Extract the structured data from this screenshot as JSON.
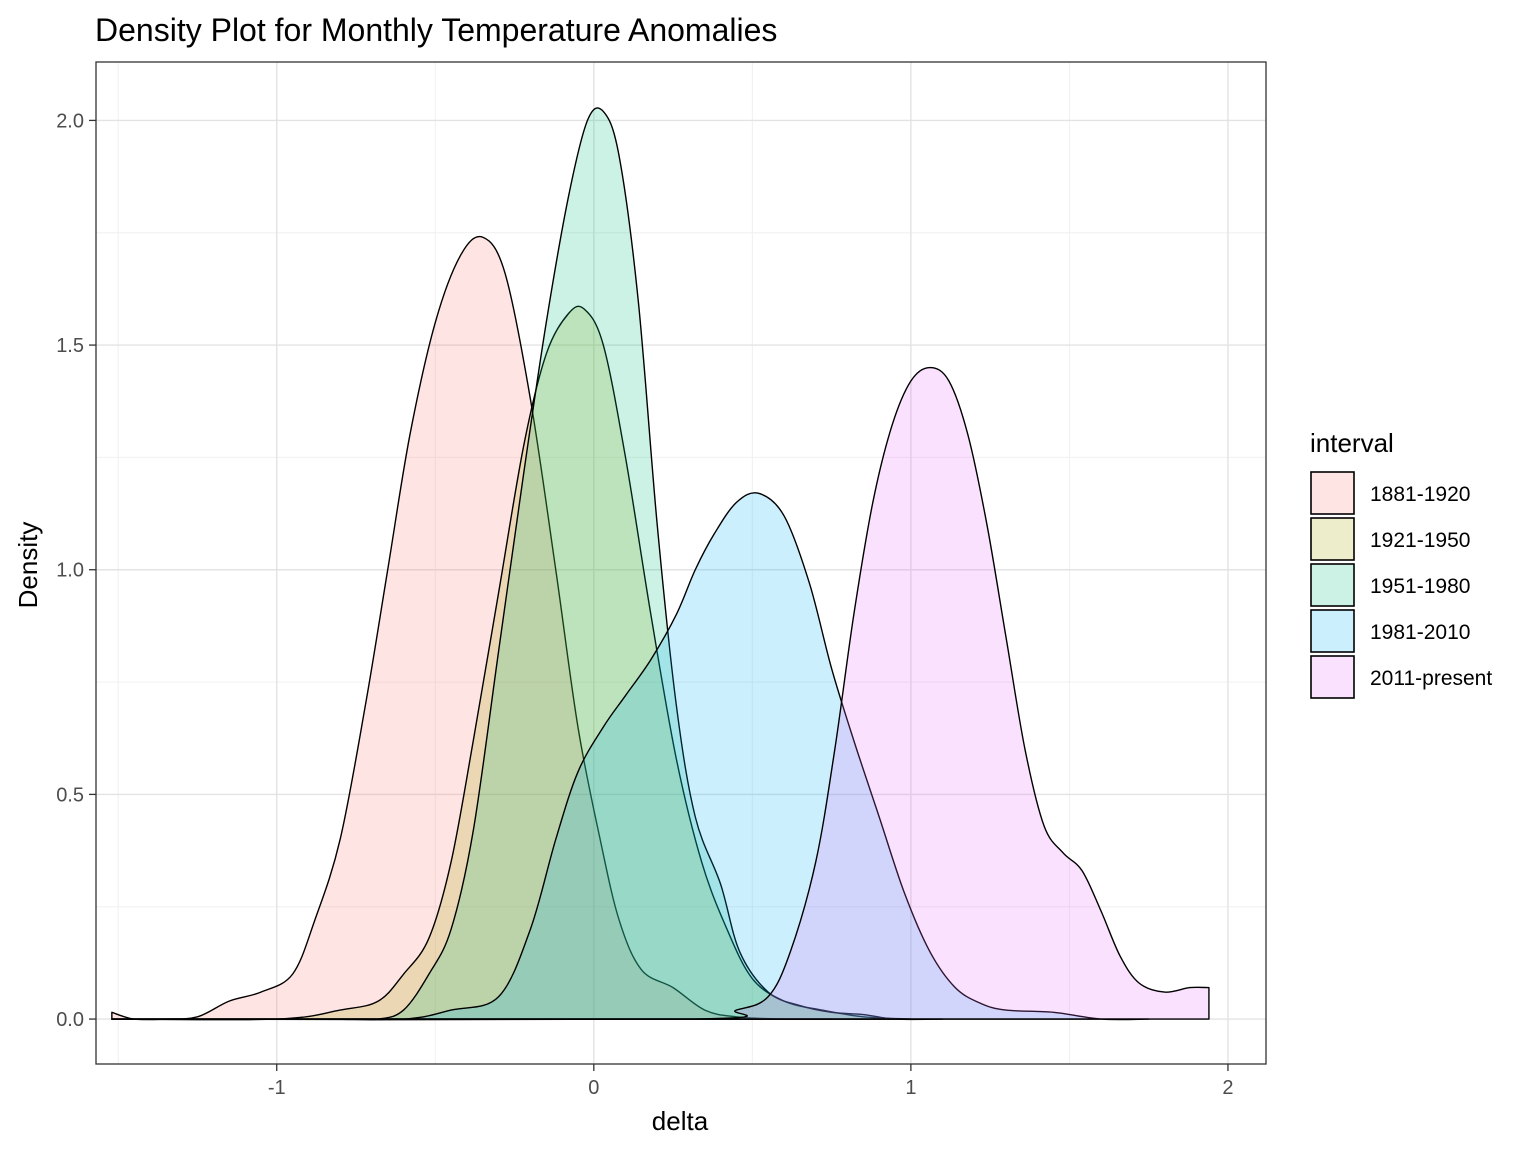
{
  "chart_data": {
    "type": "area",
    "title": "Density Plot for Monthly Temperature Anomalies",
    "xlabel": "delta",
    "ylabel": "Density",
    "xlim": [
      -1.57,
      2.12
    ],
    "ylim": [
      -0.1,
      2.13
    ],
    "xticks": [
      -1,
      0,
      1,
      2
    ],
    "xtick_labels": [
      "-1",
      "0",
      "1",
      "2"
    ],
    "yticks": [
      0,
      0.5,
      1,
      1.5,
      2
    ],
    "ytick_labels": [
      "0.0",
      "0.5",
      "1.0",
      "1.5",
      "2.0"
    ],
    "grid": true,
    "legend": {
      "title": "interval",
      "position": "right"
    },
    "series": [
      {
        "name": "1881-1920",
        "color": "#F8766D",
        "points": [
          [
            -1.52,
            0.015
          ],
          [
            -1.45,
            0.0
          ],
          [
            -1.35,
            0.0
          ],
          [
            -1.25,
            0.005
          ],
          [
            -1.15,
            0.04
          ],
          [
            -1.05,
            0.06
          ],
          [
            -0.95,
            0.1
          ],
          [
            -0.88,
            0.22
          ],
          [
            -0.8,
            0.4
          ],
          [
            -0.72,
            0.7
          ],
          [
            -0.65,
            1.0
          ],
          [
            -0.58,
            1.3
          ],
          [
            -0.5,
            1.55
          ],
          [
            -0.42,
            1.7
          ],
          [
            -0.35,
            1.74
          ],
          [
            -0.28,
            1.66
          ],
          [
            -0.2,
            1.38
          ],
          [
            -0.12,
            1.0
          ],
          [
            -0.05,
            0.65
          ],
          [
            0.02,
            0.4
          ],
          [
            0.08,
            0.22
          ],
          [
            0.15,
            0.11
          ],
          [
            0.25,
            0.07
          ],
          [
            0.35,
            0.02
          ],
          [
            0.45,
            0.005
          ],
          [
            0.6,
            0.0
          ],
          [
            0.75,
            0.0
          ]
        ]
      },
      {
        "name": "1921-1950",
        "color": "#A3A500",
        "points": [
          [
            -1.52,
            0.0
          ],
          [
            -1.0,
            0.0
          ],
          [
            -0.8,
            0.02
          ],
          [
            -0.68,
            0.04
          ],
          [
            -0.6,
            0.1
          ],
          [
            -0.52,
            0.18
          ],
          [
            -0.45,
            0.35
          ],
          [
            -0.38,
            0.62
          ],
          [
            -0.3,
            0.95
          ],
          [
            -0.22,
            1.28
          ],
          [
            -0.15,
            1.48
          ],
          [
            -0.08,
            1.57
          ],
          [
            -0.03,
            1.58
          ],
          [
            0.03,
            1.5
          ],
          [
            0.1,
            1.25
          ],
          [
            0.18,
            0.9
          ],
          [
            0.26,
            0.58
          ],
          [
            0.34,
            0.35
          ],
          [
            0.42,
            0.2
          ],
          [
            0.5,
            0.09
          ],
          [
            0.6,
            0.04
          ],
          [
            0.72,
            0.02
          ],
          [
            0.85,
            0.005
          ],
          [
            1.0,
            0.0
          ]
        ]
      },
      {
        "name": "1951-1980",
        "color": "#00BF7D",
        "points": [
          [
            -1.52,
            0.0
          ],
          [
            -0.8,
            0.0
          ],
          [
            -0.68,
            0.0
          ],
          [
            -0.6,
            0.02
          ],
          [
            -0.52,
            0.1
          ],
          [
            -0.45,
            0.2
          ],
          [
            -0.38,
            0.42
          ],
          [
            -0.3,
            0.82
          ],
          [
            -0.22,
            1.22
          ],
          [
            -0.15,
            1.55
          ],
          [
            -0.08,
            1.83
          ],
          [
            -0.02,
            2.0
          ],
          [
            0.03,
            2.02
          ],
          [
            0.08,
            1.92
          ],
          [
            0.14,
            1.6
          ],
          [
            0.2,
            1.1
          ],
          [
            0.26,
            0.7
          ],
          [
            0.32,
            0.45
          ],
          [
            0.4,
            0.3
          ],
          [
            0.46,
            0.15
          ],
          [
            0.55,
            0.06
          ],
          [
            0.65,
            0.03
          ],
          [
            0.75,
            0.015
          ],
          [
            0.85,
            0.01
          ],
          [
            0.95,
            0.0
          ],
          [
            1.1,
            0.0
          ]
        ]
      },
      {
        "name": "1981-2010",
        "color": "#00B0F6",
        "points": [
          [
            -1.52,
            0.0
          ],
          [
            -0.9,
            0.0
          ],
          [
            -0.6,
            0.0
          ],
          [
            -0.45,
            0.02
          ],
          [
            -0.3,
            0.05
          ],
          [
            -0.2,
            0.2
          ],
          [
            -0.12,
            0.4
          ],
          [
            -0.05,
            0.55
          ],
          [
            0.03,
            0.65
          ],
          [
            0.1,
            0.72
          ],
          [
            0.18,
            0.8
          ],
          [
            0.26,
            0.9
          ],
          [
            0.32,
            1.0
          ],
          [
            0.38,
            1.08
          ],
          [
            0.45,
            1.15
          ],
          [
            0.52,
            1.17
          ],
          [
            0.6,
            1.12
          ],
          [
            0.68,
            0.97
          ],
          [
            0.75,
            0.78
          ],
          [
            0.82,
            0.62
          ],
          [
            0.9,
            0.45
          ],
          [
            0.98,
            0.28
          ],
          [
            1.06,
            0.15
          ],
          [
            1.14,
            0.07
          ],
          [
            1.22,
            0.035
          ],
          [
            1.3,
            0.02
          ],
          [
            1.45,
            0.015
          ],
          [
            1.6,
            0.0
          ],
          [
            1.75,
            0.0
          ]
        ]
      },
      {
        "name": "2011-present",
        "color": "#E76BF3",
        "points": [
          [
            -1.52,
            0.0
          ],
          [
            0.3,
            0.0
          ],
          [
            0.45,
            0.02
          ],
          [
            0.55,
            0.05
          ],
          [
            0.62,
            0.15
          ],
          [
            0.7,
            0.35
          ],
          [
            0.76,
            0.6
          ],
          [
            0.82,
            0.9
          ],
          [
            0.88,
            1.15
          ],
          [
            0.94,
            1.32
          ],
          [
            1.0,
            1.42
          ],
          [
            1.06,
            1.45
          ],
          [
            1.12,
            1.42
          ],
          [
            1.18,
            1.3
          ],
          [
            1.24,
            1.1
          ],
          [
            1.3,
            0.85
          ],
          [
            1.36,
            0.6
          ],
          [
            1.42,
            0.43
          ],
          [
            1.48,
            0.37
          ],
          [
            1.54,
            0.33
          ],
          [
            1.6,
            0.24
          ],
          [
            1.66,
            0.14
          ],
          [
            1.72,
            0.08
          ],
          [
            1.8,
            0.06
          ],
          [
            1.88,
            0.07
          ],
          [
            1.94,
            0.07
          ]
        ]
      }
    ]
  }
}
